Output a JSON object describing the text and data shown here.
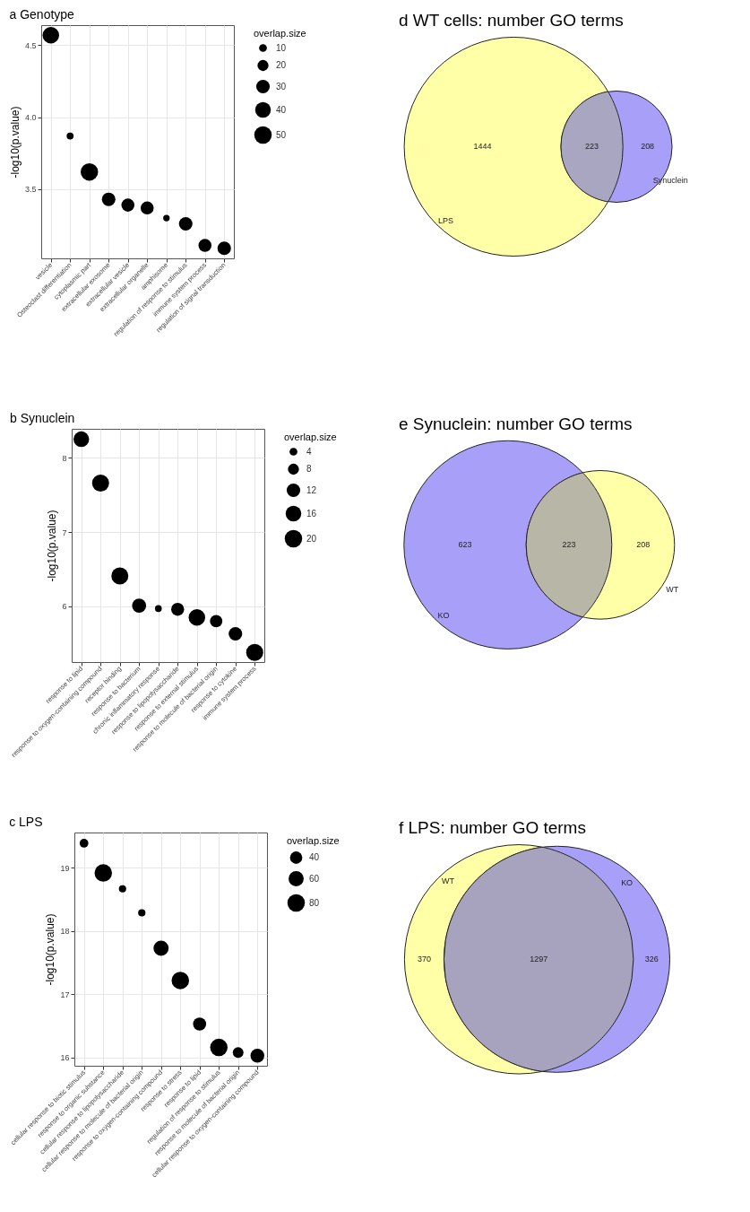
{
  "chart_data": [
    {
      "type": "bubble",
      "title": "a Genotype",
      "ylabel": "-log10(p.value)",
      "legend_title": "overlap.size",
      "grid": true,
      "categories": [
        "vesicle",
        "Osteoclast differentiation",
        "cytoplasmic part",
        "extracellular exosome",
        "extracellular vesicle",
        "extracellular organelle",
        "amphisome",
        "regulation of response to stimulus",
        "immune system process",
        "regulation of signal transduction"
      ],
      "series": [
        {
          "color": "#000000",
          "values": [
            4.57,
            3.87,
            3.62,
            3.43,
            3.39,
            3.37,
            3.3,
            3.26,
            3.11,
            3.09
          ],
          "sizes": [
            45,
            8,
            50,
            30,
            28,
            28,
            7,
            30,
            28,
            30
          ]
        }
      ],
      "size_legend": [
        10,
        20,
        30,
        40,
        50
      ],
      "ylim": [
        3.02,
        4.64
      ],
      "yticks": [
        3.5,
        {
          "value": 4,
          "label": "4.0"
        },
        4.5
      ]
    },
    {
      "type": "bubble",
      "title": "b Synuclein",
      "ylabel": "-log10(p.value)",
      "legend_title": "overlap.size",
      "grid": true,
      "categories": [
        "response to lipid",
        "response to oxygen-containing compound",
        "receptor binding",
        "response to bacterium",
        "chronic inflammatory response",
        "response to lipopolysaccharide",
        "response to external stimulus",
        "response to molecule of bacterial origin",
        "response to cytokine",
        "immune system process"
      ],
      "series": [
        {
          "color": "#000000",
          "values": [
            8.25,
            7.66,
            6.41,
            6.01,
            5.97,
            5.96,
            5.85,
            5.8,
            5.63,
            5.38
          ],
          "sizes": [
            16,
            19,
            19,
            13,
            3,
            11,
            18,
            10,
            12,
            19
          ]
        }
      ],
      "size_legend": [
        4,
        8,
        12,
        16,
        20
      ],
      "ylim": [
        5.25,
        8.39
      ],
      "yticks": [
        6,
        7,
        8
      ]
    },
    {
      "type": "bubble",
      "title": "c LPS",
      "ylabel": "-log10(p.value)",
      "legend_title": "overlap.size",
      "grid": true,
      "categories": [
        "cellular response to biotic stimulus",
        "response to organic substance",
        "cellular response to lipopolysaccharide",
        "cellular response to molecule of bacterial origin",
        "response to oxygen-containing compound",
        "response to stress",
        "response to lipid",
        "regulation of response to stimulus",
        "response to molecule of bacterial origin",
        "cellular response to oxygen-containing compound"
      ],
      "series": [
        {
          "color": "#000000",
          "values": [
            19.39,
            18.92,
            18.67,
            18.29,
            17.73,
            17.22,
            16.53,
            16.16,
            16.08,
            16.03
          ],
          "sizes": [
            20,
            80,
            14,
            14,
            60,
            80,
            45,
            80,
            30,
            50
          ]
        }
      ],
      "size_legend": [
        40,
        60,
        80
      ],
      "ylim": [
        15.87,
        19.56
      ],
      "yticks": [
        16,
        17,
        18,
        19
      ]
    },
    {
      "type": "other",
      "title": "d WT cells: number GO terms",
      "categories": [
        null,
        null,
        null
      ],
      "values": [
        1444,
        223,
        208
      ],
      "colors": [
        "#ffffa8",
        "#a9a6c2",
        "#a8a0f8"
      ],
      "data_labels": true,
      "annotations": [
        "LPS",
        "Synuclein"
      ]
    },
    {
      "type": "other",
      "title": "e Synuclein: number GO terms",
      "categories": [
        null,
        null,
        null
      ],
      "values": [
        623,
        223,
        208
      ],
      "colors": [
        "#a8a0f8",
        "#b8b6a6",
        "#ffffa8"
      ],
      "data_labels": true,
      "annotations": [
        "KO",
        "WT"
      ]
    },
    {
      "type": "other",
      "title": "f LPS: number GO terms",
      "categories": [
        null,
        null,
        null
      ],
      "values": [
        370,
        1297,
        326
      ],
      "colors": [
        "#ffffa8",
        "#a7a3bf",
        "#a8a0f8"
      ],
      "data_labels": true,
      "annotations": [
        "WT",
        "KO"
      ]
    }
  ]
}
